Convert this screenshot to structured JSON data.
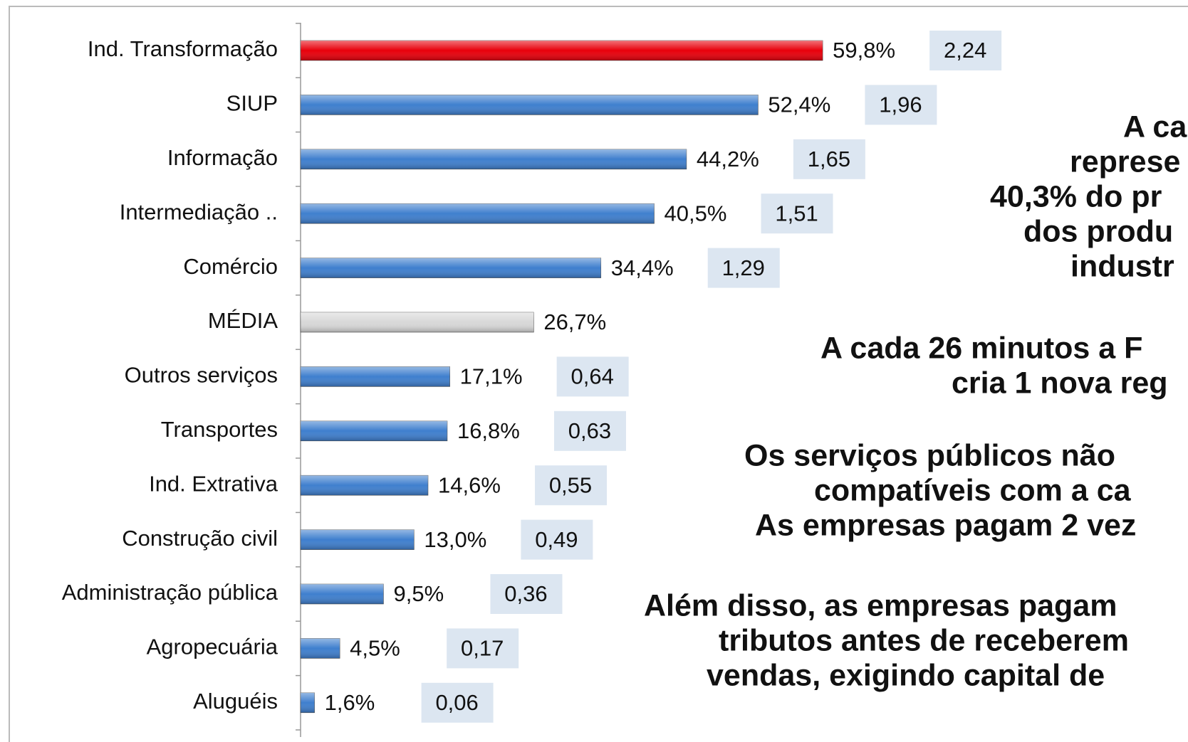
{
  "chart_data": {
    "type": "bar",
    "orientation": "horizontal",
    "categories": [
      "Ind. Transformação",
      "SIUP",
      "Informação",
      "Intermediação ..",
      "Comércio",
      "MÉDIA",
      "Outros serviços",
      "Transportes",
      "Ind. Extrativa",
      "Construção  civil",
      "Administração  pública",
      "Agropecuária",
      "Aluguéis"
    ],
    "values": [
      59.8,
      52.4,
      44.2,
      40.5,
      34.4,
      26.7,
      17.1,
      16.8,
      14.6,
      13.0,
      9.5,
      4.5,
      1.6
    ],
    "value_labels": [
      "59,8%",
      "52,4%",
      "44,2%",
      "40,5%",
      "34,4%",
      "26,7%",
      "17,1%",
      "16,8%",
      "14,6%",
      "13,0%",
      "9,5%",
      "4,5%",
      "1,6%"
    ],
    "colors": [
      "#e8000b",
      "#3f7fce",
      "#3f7fce",
      "#3f7fce",
      "#3f7fce",
      "#d8d8d8",
      "#3f7fce",
      "#3f7fce",
      "#3f7fce",
      "#3f7fce",
      "#3f7fce",
      "#3f7fce",
      "#3f7fce"
    ],
    "ratios": [
      2.24,
      1.96,
      1.65,
      1.51,
      1.29,
      null,
      0.64,
      0.63,
      0.55,
      0.49,
      0.36,
      0.17,
      0.06
    ],
    "ratio_labels": [
      "2,24",
      "1,96",
      "1,65",
      "1,51",
      "1,29",
      null,
      "0,64",
      "0,63",
      "0,55",
      "0,49",
      "0,36",
      "0,17",
      "0,06"
    ],
    "ratio_box_color": "#dce6f1"
  },
  "side_text": [
    "A ca",
    "represe",
    "40,3% do pr",
    "dos produ",
    "industr",
    "A cada 26 minutos a F",
    "cria 1 nova reg",
    "Os serviços públicos não",
    "compatíveis com a ca",
    "As empresas pagam 2 vez",
    "Além disso, as empresas pagam",
    "tributos antes de receberem",
    "vendas, exigindo capital de"
  ]
}
